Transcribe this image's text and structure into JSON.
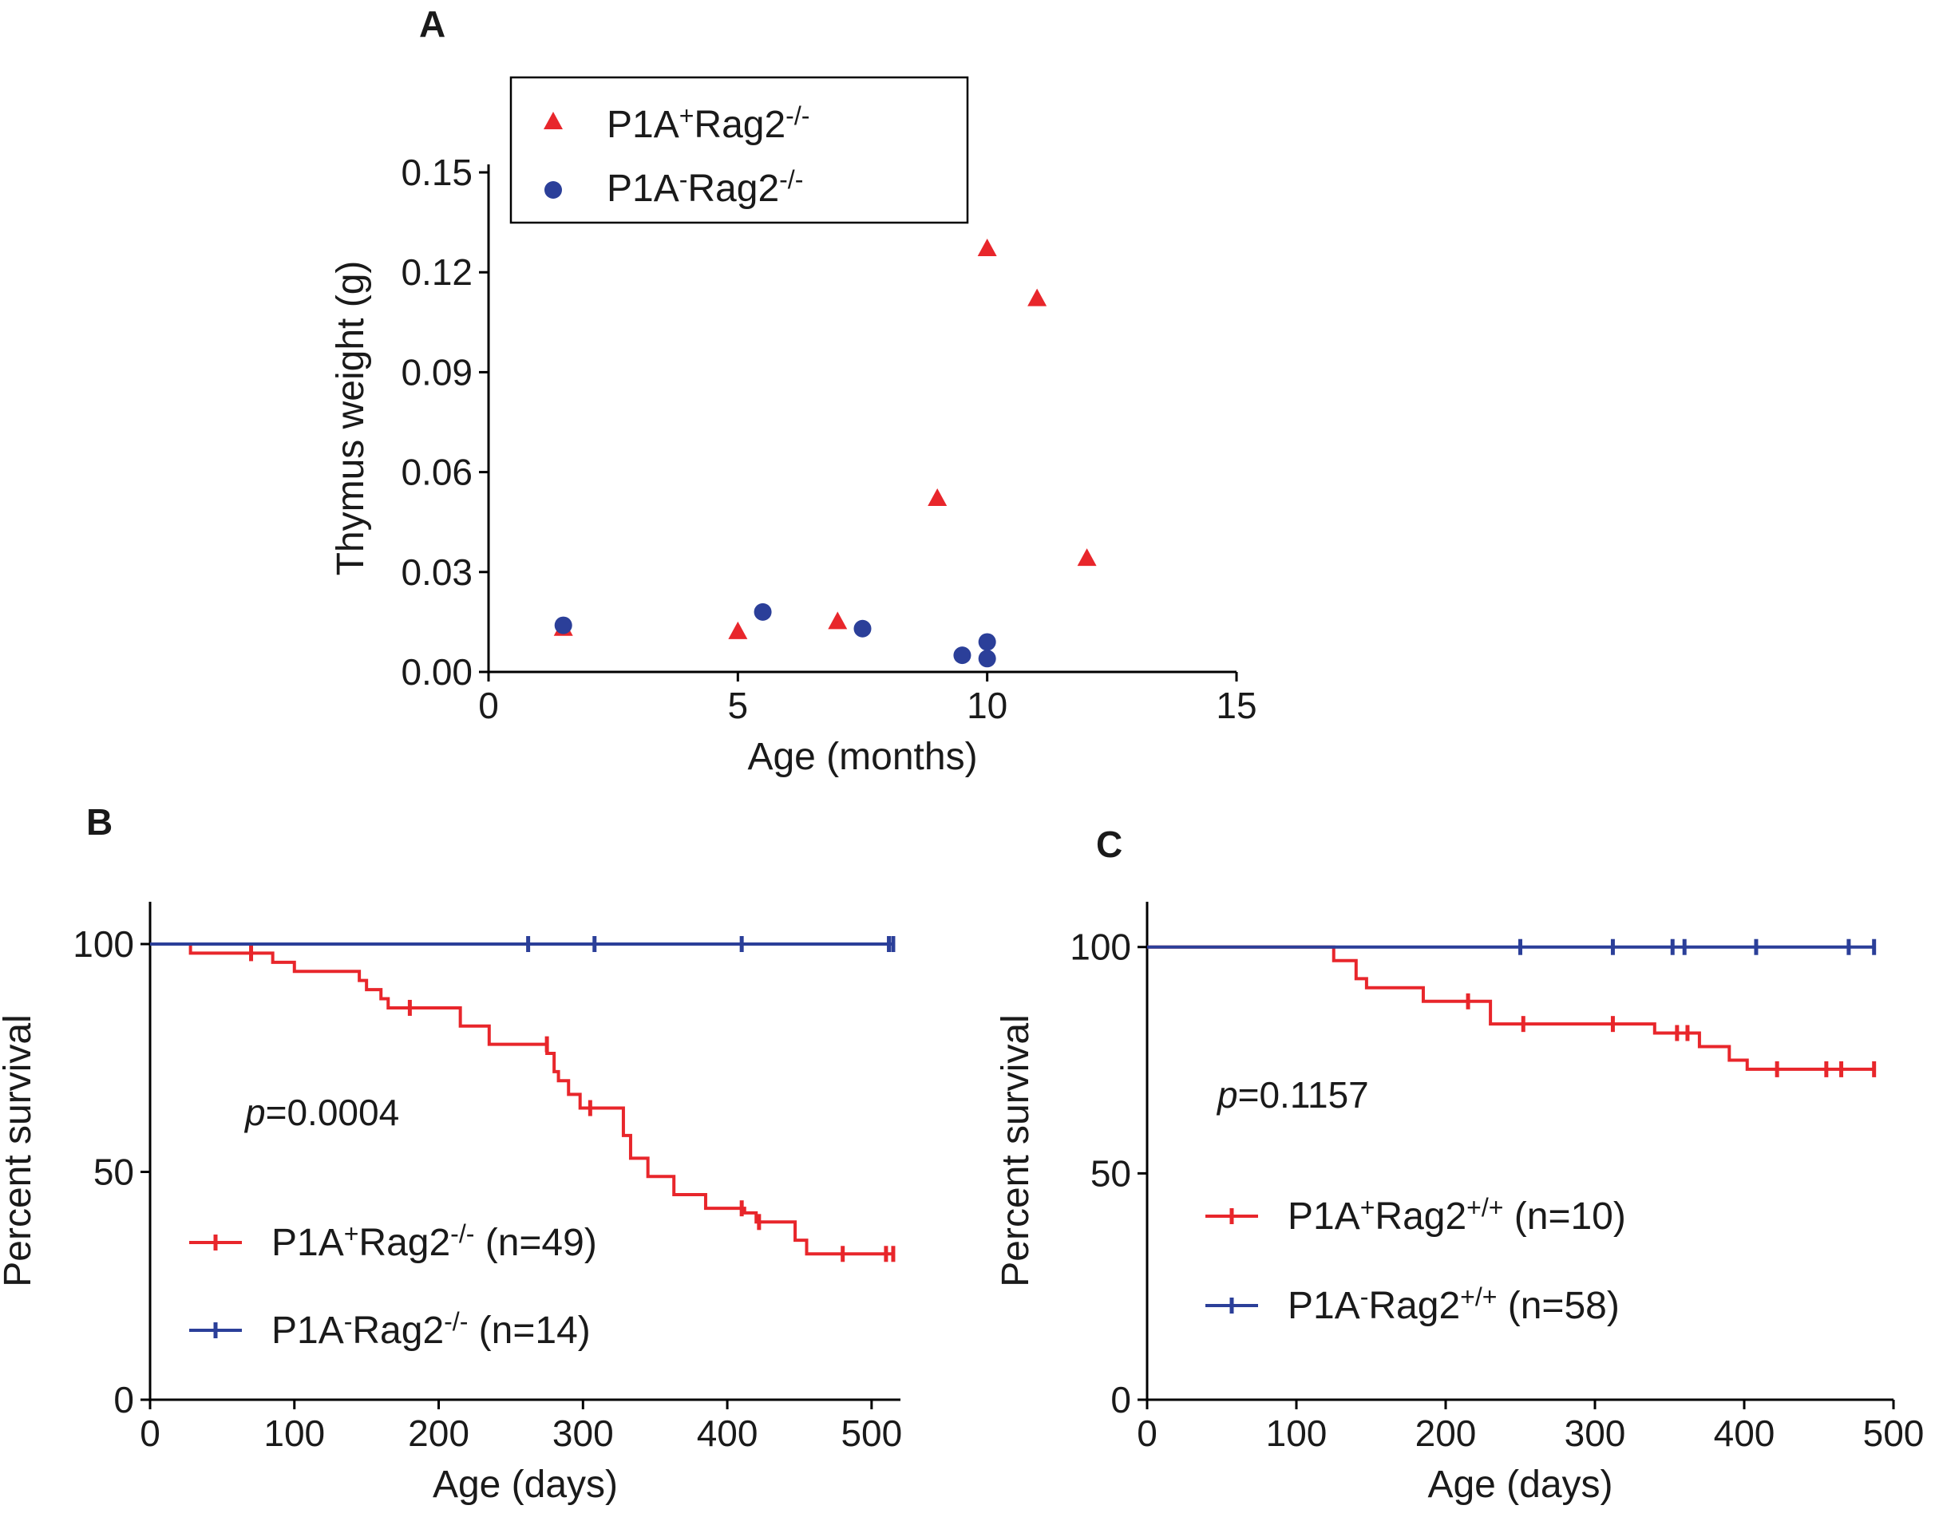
{
  "chart_data": [
    {
      "panel": "A",
      "type": "scatter",
      "xlabel": "Age (months)",
      "ylabel": "Thymus weight (g)",
      "xlim": [
        0,
        15
      ],
      "ylim": [
        0,
        0.15
      ],
      "xticks": [
        "0",
        "5",
        "10",
        "15"
      ],
      "yticks": [
        "0.00",
        "0.03",
        "0.06",
        "0.09",
        "0.12",
        "0.15"
      ],
      "legend_position": "top-left",
      "series": [
        {
          "name": "P1A+Rag2-/-",
          "label": {
            "base": "P1A",
            "sup1": "+",
            "mid": "Rag2",
            "sup2": "-/-",
            "tail": ""
          },
          "marker": "triangle",
          "color": "#e8262b",
          "x": [
            1.5,
            5.0,
            7.0,
            9.0,
            10.0,
            11.0,
            12.0
          ],
          "y": [
            0.013,
            0.012,
            0.015,
            0.052,
            0.127,
            0.112,
            0.034
          ]
        },
        {
          "name": "P1A-Rag2-/-",
          "label": {
            "base": "P1A",
            "sup1": "-",
            "mid": "Rag2",
            "sup2": "-/-",
            "tail": ""
          },
          "marker": "circle",
          "color": "#2b3f99",
          "x": [
            1.5,
            5.5,
            7.5,
            9.5,
            10.0,
            10.0
          ],
          "y": [
            0.014,
            0.018,
            0.013,
            0.005,
            0.004,
            0.009
          ]
        }
      ]
    },
    {
      "panel": "B",
      "type": "line",
      "subtype": "kaplan-meier",
      "xlabel": "Age (days)",
      "ylabel": "Percent survival",
      "xlim": [
        0,
        520
      ],
      "ylim": [
        0,
        110
      ],
      "xticks": [
        "0",
        "100",
        "200",
        "300",
        "400",
        "500"
      ],
      "yticks": [
        "0",
        "50",
        "100"
      ],
      "annotation": {
        "italic": "p",
        "text": "=0.0004"
      },
      "legend_position": "bottom-left",
      "series": [
        {
          "name": "P1A+Rag2-/- (n=49)",
          "label": {
            "base": "P1A",
            "sup1": "+",
            "mid": "Rag2",
            "sup2": "-/-",
            "tail": " (n=49)"
          },
          "color": "#e8262b",
          "x": [
            28,
            28,
            70,
            85,
            85,
            100,
            100,
            145,
            145,
            150,
            150,
            160,
            160,
            165,
            165,
            215,
            215,
            235,
            235,
            275,
            275,
            280,
            280,
            283,
            283,
            290,
            290,
            298,
            298,
            328,
            328,
            333,
            333,
            345,
            345,
            363,
            363,
            385,
            385,
            412,
            412,
            420,
            420,
            447,
            447,
            455,
            455,
            515
          ],
          "y": [
            100,
            98,
            98,
            98,
            96,
            96,
            94,
            94,
            92,
            92,
            90,
            90,
            88,
            88,
            86,
            86,
            82,
            82,
            78,
            78,
            76,
            76,
            72,
            72,
            70,
            70,
            67,
            67,
            64,
            64,
            58,
            58,
            53,
            53,
            49,
            49,
            45,
            45,
            42,
            42,
            41,
            41,
            39,
            39,
            35,
            35,
            32,
            32
          ],
          "censor_x": [
            70,
            180,
            275,
            305,
            410,
            422,
            480,
            510,
            515
          ],
          "censor_y": [
            98,
            86,
            78,
            64,
            42,
            39,
            32,
            32,
            32
          ]
        },
        {
          "name": "P1A-Rag2-/- (n=14)",
          "label": {
            "base": "P1A",
            "sup1": "-",
            "mid": "Rag2",
            "sup2": "-/-",
            "tail": " (n=14)"
          },
          "color": "#2b3f99",
          "x": [
            0,
            515
          ],
          "y": [
            100,
            100
          ],
          "censor_x": [
            262,
            308,
            410,
            512,
            515
          ],
          "censor_y": [
            100,
            100,
            100,
            100,
            100
          ]
        }
      ]
    },
    {
      "panel": "C",
      "type": "line",
      "subtype": "kaplan-meier",
      "xlabel": "Age (days)",
      "ylabel": "Percent survival",
      "xlim": [
        0,
        500
      ],
      "ylim": [
        0,
        110
      ],
      "xticks": [
        "0",
        "100",
        "200",
        "300",
        "400",
        "500"
      ],
      "yticks": [
        "0",
        "50",
        "100"
      ],
      "annotation": {
        "italic": "p",
        "text": "=0.1157"
      },
      "legend_position": "bottom-left",
      "series": [
        {
          "name": "P1A+Rag2+/+ (n=10)",
          "label": {
            "base": "P1A",
            "sup1": "+",
            "mid": "Rag2",
            "sup2": "+/+",
            "tail": " (n=10)"
          },
          "color": "#e8262b",
          "x": [
            0,
            125,
            125,
            140,
            140,
            147,
            147,
            185,
            185,
            230,
            230,
            340,
            340,
            370,
            370,
            390,
            390,
            402,
            402,
            487
          ],
          "y": [
            100,
            100,
            97,
            97,
            93,
            93,
            91,
            91,
            88,
            88,
            83,
            83,
            81,
            81,
            78,
            78,
            75,
            75,
            73,
            73
          ],
          "censor_x": [
            215,
            252,
            312,
            355,
            362,
            422,
            455,
            465,
            487
          ],
          "censor_y": [
            88,
            83,
            83,
            81,
            81,
            73,
            73,
            73,
            73
          ]
        },
        {
          "name": "P1A-Rag2+/+ (n=58)",
          "label": {
            "base": "P1A",
            "sup1": "-",
            "mid": "Rag2",
            "sup2": "+/+",
            "tail": " (n=58)"
          },
          "color": "#2b3f99",
          "x": [
            0,
            487
          ],
          "y": [
            100,
            100
          ],
          "censor_x": [
            250,
            312,
            352,
            360,
            408,
            470,
            487
          ],
          "censor_y": [
            100,
            100,
            100,
            100,
            100,
            100,
            100
          ]
        }
      ]
    }
  ]
}
